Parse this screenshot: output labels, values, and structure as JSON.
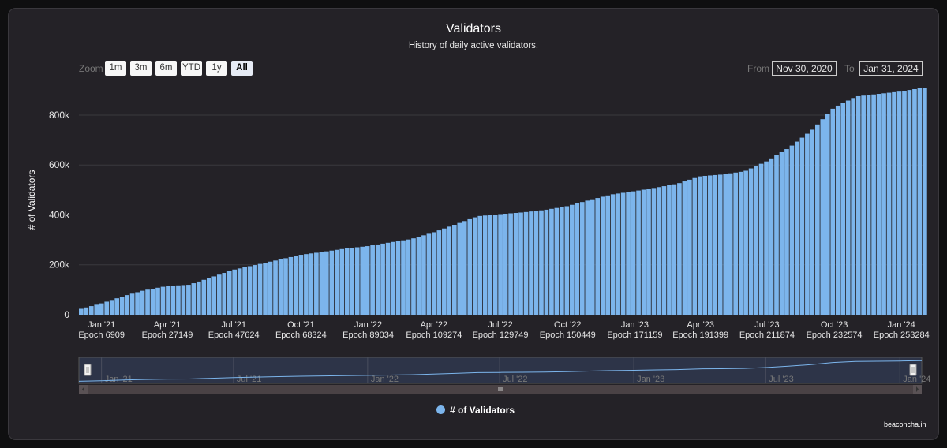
{
  "header": {
    "title": "Validators",
    "subtitle": "History of daily active validators."
  },
  "zoom": {
    "label": "Zoom",
    "buttons": [
      "1m",
      "3m",
      "6m",
      "YTD",
      "1y",
      "All"
    ],
    "active": "All"
  },
  "range": {
    "from_label": "From",
    "from_value": "Nov 30, 2020",
    "to_label": "To",
    "to_value": "Jan 31, 2024"
  },
  "legend": {
    "label": "# of Validators"
  },
  "credits": "beaconcha.in",
  "colors": {
    "series": "#7cb5ec",
    "background": "#242227",
    "grid": "#3a393e",
    "navigator_mask": "#2d3448",
    "navigator_handle": "#cccccc"
  },
  "navigator": {
    "ticks": [
      "Jan '21",
      "Jul '21",
      "Jan '22",
      "Jul '22",
      "Jan '23",
      "Jul '23",
      "Jan '24"
    ]
  },
  "chart_data": {
    "type": "bar",
    "title": "Validators",
    "subtitle": "History of daily active validators.",
    "ylabel": "# of Validators",
    "ylim": [
      0,
      920000
    ],
    "yticks": [
      {
        "value": 0,
        "label": "0"
      },
      {
        "value": 200000,
        "label": "200k"
      },
      {
        "value": 400000,
        "label": "400k"
      },
      {
        "value": 600000,
        "label": "600k"
      },
      {
        "value": 800000,
        "label": "800k"
      }
    ],
    "xlim": [
      "2020-12-01",
      "2024-01-31"
    ],
    "xticks": [
      {
        "date": "2021-01-01",
        "label": "Jan '21",
        "epoch": "Epoch 6909"
      },
      {
        "date": "2021-04-01",
        "label": "Apr '21",
        "epoch": "Epoch 27149"
      },
      {
        "date": "2021-07-01",
        "label": "Jul '21",
        "epoch": "Epoch 47624"
      },
      {
        "date": "2021-10-01",
        "label": "Oct '21",
        "epoch": "Epoch 68324"
      },
      {
        "date": "2022-01-01",
        "label": "Jan '22",
        "epoch": "Epoch 89034"
      },
      {
        "date": "2022-04-01",
        "label": "Apr '22",
        "epoch": "Epoch 109274"
      },
      {
        "date": "2022-07-01",
        "label": "Jul '22",
        "epoch": "Epoch 129749"
      },
      {
        "date": "2022-10-01",
        "label": "Oct '22",
        "epoch": "Epoch 150449"
      },
      {
        "date": "2023-01-01",
        "label": "Jan '23",
        "epoch": "Epoch 171159"
      },
      {
        "date": "2023-04-01",
        "label": "Apr '23",
        "epoch": "Epoch 191399"
      },
      {
        "date": "2023-07-01",
        "label": "Jul '23",
        "epoch": "Epoch 211874"
      },
      {
        "date": "2023-10-01",
        "label": "Oct '23",
        "epoch": "Epoch 232574"
      },
      {
        "date": "2024-01-01",
        "label": "Jan '24",
        "epoch": "Epoch 253284"
      }
    ],
    "series": [
      {
        "name": "# of Validators",
        "points": [
          [
            "2020-12-01",
            21000
          ],
          [
            "2021-01-01",
            45000
          ],
          [
            "2021-02-01",
            75000
          ],
          [
            "2021-03-01",
            98000
          ],
          [
            "2021-04-01",
            115000
          ],
          [
            "2021-05-01",
            120000
          ],
          [
            "2021-06-01",
            150000
          ],
          [
            "2021-07-01",
            180000
          ],
          [
            "2021-08-01",
            200000
          ],
          [
            "2021-09-01",
            220000
          ],
          [
            "2021-10-01",
            240000
          ],
          [
            "2021-11-01",
            252000
          ],
          [
            "2021-12-01",
            265000
          ],
          [
            "2022-01-01",
            275000
          ],
          [
            "2022-02-01",
            290000
          ],
          [
            "2022-03-01",
            303000
          ],
          [
            "2022-04-01",
            330000
          ],
          [
            "2022-05-01",
            362000
          ],
          [
            "2022-06-01",
            395000
          ],
          [
            "2022-07-01",
            403000
          ],
          [
            "2022-08-01",
            410000
          ],
          [
            "2022-09-01",
            420000
          ],
          [
            "2022-10-01",
            435000
          ],
          [
            "2022-11-01",
            460000
          ],
          [
            "2022-12-01",
            482000
          ],
          [
            "2023-01-01",
            495000
          ],
          [
            "2023-02-01",
            510000
          ],
          [
            "2023-03-01",
            525000
          ],
          [
            "2023-04-01",
            555000
          ],
          [
            "2023-05-01",
            562000
          ],
          [
            "2023-06-01",
            575000
          ],
          [
            "2023-07-01",
            615000
          ],
          [
            "2023-08-01",
            670000
          ],
          [
            "2023-09-01",
            740000
          ],
          [
            "2023-10-01",
            830000
          ],
          [
            "2023-11-01",
            875000
          ],
          [
            "2023-12-01",
            885000
          ],
          [
            "2024-01-01",
            895000
          ],
          [
            "2024-01-31",
            910000
          ]
        ]
      }
    ]
  }
}
